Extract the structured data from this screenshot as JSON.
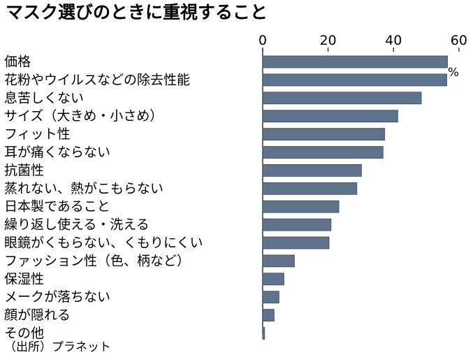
{
  "chart_data": {
    "type": "bar",
    "orientation": "horizontal",
    "title": "マスク選びのときに重視すること",
    "categories": [
      "価格",
      "花粉やウイルスなどの除去性能",
      "息苦しくない",
      "サイズ（大きめ・小さめ）",
      "フィット性",
      "耳が痛くならない",
      "抗菌性",
      "蒸れない、熱がこもらない",
      "日本製であること",
      "繰り返し使える・洗える",
      "眼鏡がくもらない、くもりにくい",
      "ファッション性（色、柄など）",
      "保湿性",
      "メークが落ちない",
      "顔が隠れる",
      "その他"
    ],
    "values": [
      56.5,
      56.3,
      48.5,
      41.3,
      37.3,
      36.8,
      30.2,
      28.8,
      23.3,
      20.9,
      20.3,
      9.7,
      6.5,
      5.0,
      3.5,
      0.6
    ],
    "unit_label": "%",
    "xticks": [
      "0",
      "20",
      "40",
      "60"
    ],
    "xlim": [
      0,
      60
    ],
    "grid": false,
    "bar_color": "#5f748c",
    "source_note": "（出所）プラネット"
  }
}
